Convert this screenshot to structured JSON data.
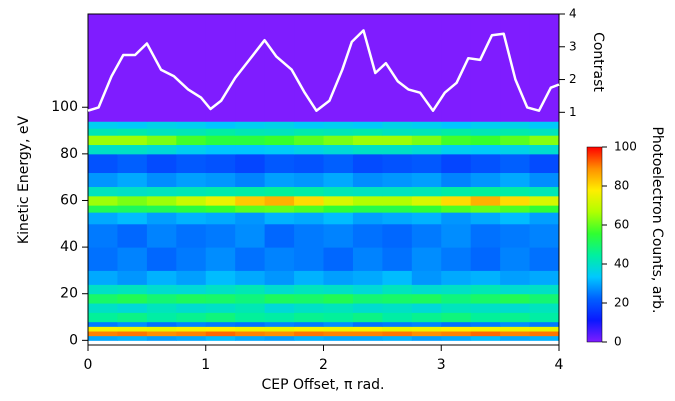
{
  "chart_data": {
    "type": "heatmap",
    "xlabel": "CEP Offset, π rad.",
    "ylabel": "Kinetic Energy, eV",
    "y2label": "Contrast",
    "colorbar_label": "Photoelectron Counts, arb.",
    "xlim": [
      0,
      4
    ],
    "ylim": [
      -2,
      140
    ],
    "y2lim": [
      -6.1,
      4
    ],
    "zlim": [
      0,
      100
    ],
    "xticks": [
      0,
      1,
      2,
      3,
      4
    ],
    "yticks": [
      0,
      20,
      40,
      60,
      80,
      100
    ],
    "y2ticks": [
      1,
      2,
      3,
      4
    ],
    "zticks": [
      0,
      20,
      40,
      60,
      80,
      100
    ],
    "colorscale": [
      "#7f1cff",
      "#0a18ff",
      "#0060ff",
      "#00c8ff",
      "#00f0a0",
      "#30ff30",
      "#b0ff00",
      "#ffee00",
      "#ff9000",
      "#ff0000"
    ],
    "xbins": [
      0,
      0.25,
      0.5,
      0.75,
      1,
      1.25,
      1.5,
      1.75,
      2,
      2.25,
      2.5,
      2.75,
      3,
      3.25,
      3.5,
      3.75,
      4
    ],
    "ybins": [
      0,
      2,
      4,
      6,
      8,
      12,
      16,
      20,
      24,
      30,
      40,
      50,
      55,
      58,
      62,
      66,
      72,
      80,
      84,
      88,
      91,
      94,
      140
    ],
    "z": [
      [
        30,
        31,
        29,
        30,
        32,
        30,
        29,
        31,
        30,
        30,
        31,
        29,
        30,
        32,
        30,
        31
      ],
      [
        90,
        91,
        89,
        90,
        92,
        90,
        89,
        91,
        90,
        90,
        91,
        89,
        90,
        92,
        90,
        91
      ],
      [
        76,
        75,
        74,
        76,
        77,
        75,
        74,
        76,
        75,
        76,
        74,
        75,
        77,
        76,
        75,
        74
      ],
      [
        25,
        27,
        24,
        26,
        25,
        24,
        26,
        25,
        27,
        24,
        25,
        26,
        24,
        25,
        27,
        25
      ],
      [
        45,
        47,
        44,
        46,
        48,
        45,
        44,
        46,
        45,
        47,
        44,
        46,
        48,
        45,
        46,
        44
      ],
      [
        40,
        38,
        41,
        39,
        40,
        42,
        38,
        40,
        41,
        39,
        40,
        38,
        41,
        40,
        39,
        41
      ],
      [
        50,
        52,
        49,
        51,
        50,
        48,
        51,
        50,
        52,
        49,
        50,
        51,
        48,
        50,
        52,
        49
      ],
      [
        40,
        41,
        39,
        38,
        40,
        42,
        39,
        41,
        40,
        38,
        41,
        39,
        40,
        42,
        39,
        40
      ],
      [
        30,
        28,
        31,
        29,
        32,
        30,
        28,
        31,
        29,
        30,
        32,
        28,
        30,
        31,
        29,
        30
      ],
      [
        24,
        26,
        23,
        25,
        27,
        24,
        26,
        25,
        23,
        26,
        24,
        27,
        25,
        23,
        26,
        24
      ],
      [
        25,
        23,
        26,
        24,
        25,
        27,
        23,
        25,
        26,
        24,
        23,
        25,
        27,
        24,
        25,
        26
      ],
      [
        30,
        32,
        29,
        31,
        30,
        28,
        31,
        30,
        32,
        29,
        30,
        31,
        28,
        30,
        32,
        29
      ],
      [
        52,
        51,
        52,
        54,
        56,
        59,
        60,
        58,
        55,
        53,
        53,
        55,
        58,
        60,
        58,
        55
      ],
      [
        65,
        62,
        65,
        70,
        75,
        82,
        85,
        80,
        72,
        67,
        67,
        72,
        80,
        85,
        80,
        72
      ],
      [
        41,
        40,
        41,
        42,
        43,
        44,
        45,
        44,
        42,
        41,
        41,
        42,
        44,
        45,
        44,
        42
      ],
      [
        28,
        30,
        27,
        29,
        28,
        26,
        29,
        28,
        30,
        27,
        28,
        29,
        26,
        28,
        30,
        27
      ],
      [
        20,
        22,
        19,
        21,
        20,
        18,
        21,
        20,
        22,
        19,
        20,
        21,
        18,
        20,
        22,
        19
      ],
      [
        40,
        40,
        38,
        35,
        33,
        33,
        34,
        36,
        38,
        40,
        40,
        38,
        35,
        34,
        36,
        39
      ],
      [
        65,
        65,
        62,
        57,
        54,
        54,
        56,
        59,
        62,
        65,
        65,
        62,
        57,
        56,
        59,
        63
      ],
      [
        42,
        43,
        41,
        42,
        44,
        42,
        41,
        43,
        42,
        43,
        41,
        42,
        44,
        42,
        43,
        41
      ],
      [
        35,
        34,
        36,
        35,
        33,
        35,
        36,
        34,
        35,
        34,
        36,
        35,
        33,
        35,
        36,
        34
      ],
      [
        0,
        0,
        0,
        0,
        0,
        0,
        0,
        0,
        0,
        0,
        0,
        0,
        0,
        0,
        0,
        0
      ]
    ],
    "contrast": {
      "axis": "y2",
      "color": "#ffffff",
      "x": [
        0,
        0.09,
        0.2,
        0.3,
        0.4,
        0.5,
        0.62,
        0.73,
        0.85,
        0.96,
        1.04,
        1.13,
        1.25,
        1.37,
        1.5,
        1.6,
        1.73,
        1.84,
        1.94,
        2.05,
        2.16,
        2.24,
        2.34,
        2.44,
        2.53,
        2.63,
        2.72,
        2.82,
        2.93,
        3.03,
        3.13,
        3.23,
        3.33,
        3.43,
        3.53,
        3.63,
        3.73,
        3.83,
        3.93,
        4
      ],
      "values": [
        1.05,
        1.15,
        2.1,
        2.75,
        2.75,
        3.1,
        2.3,
        2.1,
        1.7,
        1.45,
        1.1,
        1.35,
        2.05,
        2.6,
        3.2,
        2.7,
        2.3,
        1.6,
        1.05,
        1.35,
        2.3,
        3.15,
        3.5,
        2.2,
        2.5,
        1.95,
        1.7,
        1.6,
        1.05,
        1.6,
        1.9,
        2.65,
        2.6,
        3.35,
        3.4,
        2.0,
        1.15,
        1.05,
        1.75,
        1.85
      ]
    }
  }
}
